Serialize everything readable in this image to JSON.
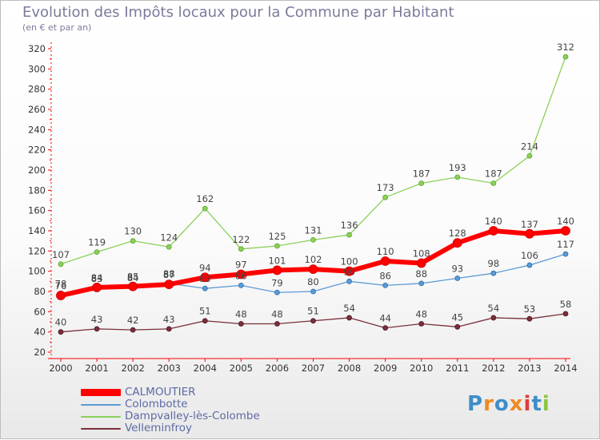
{
  "title": "Evolution des Impôts locaux pour la Commune par Habitant",
  "subtitle": "(en € et par an)",
  "logo": {
    "text": "Proxiti",
    "colors": [
      "#3d8ec9",
      "#f08a24",
      "#3d8ec9",
      "#f08a24",
      "#e23b3b",
      "#3d8ec9",
      "#8cc63f"
    ]
  },
  "chart_data": {
    "type": "line",
    "title": "Evolution des Impôts locaux pour la Commune par Habitant",
    "subtitle": "(en € et par an)",
    "x": [
      "2000",
      "2001",
      "2002",
      "2003",
      "2004",
      "2005",
      "2006",
      "2007",
      "2008",
      "2009",
      "2010",
      "2011",
      "2012",
      "2013",
      "2014"
    ],
    "ylim": [
      20,
      320
    ],
    "yticks": [
      20,
      40,
      60,
      80,
      100,
      120,
      140,
      160,
      180,
      200,
      220,
      240,
      260,
      280,
      300,
      320
    ],
    "grid": false,
    "legend_position": "bottom-left",
    "series": [
      {
        "name": "CALMOUTIER",
        "color": "#ff0000",
        "values": [
          76,
          84,
          85,
          87,
          94,
          97,
          101,
          102,
          100,
          110,
          108,
          128,
          140,
          137,
          140
        ]
      },
      {
        "name": "Colombotte",
        "color": "#5b9bd5",
        "values": [
          78,
          83,
          84,
          88,
          83,
          86,
          79,
          80,
          90,
          86,
          88,
          93,
          98,
          106,
          117
        ]
      },
      {
        "name": "Dampvalley-lès-Colombe",
        "color": "#8bd05a",
        "values": [
          107,
          119,
          130,
          124,
          162,
          122,
          125,
          131,
          136,
          173,
          187,
          193,
          187,
          214,
          312
        ]
      },
      {
        "name": "Velleminfroy",
        "color": "#7a2f3a",
        "values": [
          40,
          43,
          42,
          43,
          51,
          48,
          48,
          51,
          54,
          44,
          48,
          45,
          54,
          53,
          58
        ]
      }
    ]
  }
}
